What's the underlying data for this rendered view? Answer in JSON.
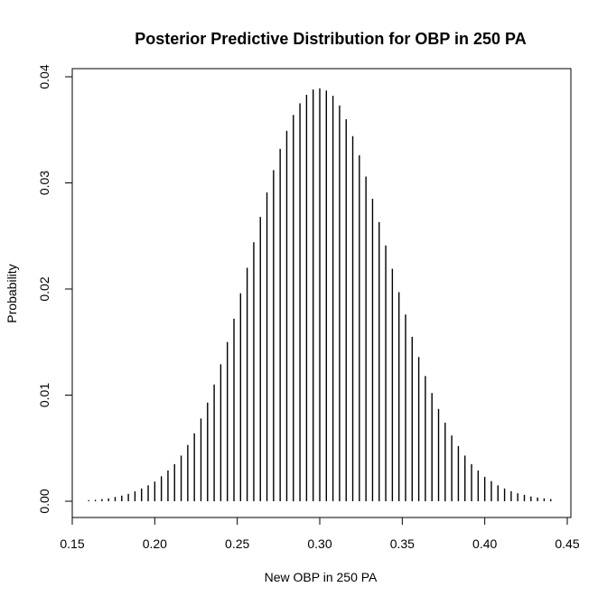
{
  "chart_data": {
    "type": "bar",
    "title": "Posterior Predictive Distribution for OBP in 250 PA",
    "xlabel": "New OBP in 250 PA",
    "ylabel": "Probability",
    "xlim": [
      0.15,
      0.45
    ],
    "ylim": [
      0,
      0.04
    ],
    "xticks": [
      "0.15",
      "0.20",
      "0.25",
      "0.30",
      "0.35",
      "0.40",
      "0.45"
    ],
    "yticks": [
      "0.00",
      "0.01",
      "0.02",
      "0.03",
      "0.04"
    ],
    "grid": false,
    "x": [
      0.16,
      0.164,
      0.168,
      0.172,
      0.176,
      0.18,
      0.184,
      0.188,
      0.192,
      0.196,
      0.2,
      0.204,
      0.208,
      0.212,
      0.216,
      0.22,
      0.224,
      0.228,
      0.232,
      0.236,
      0.24,
      0.244,
      0.248,
      0.252,
      0.256,
      0.26,
      0.264,
      0.268,
      0.272,
      0.276,
      0.28,
      0.284,
      0.288,
      0.292,
      0.296,
      0.3,
      0.304,
      0.308,
      0.312,
      0.316,
      0.32,
      0.324,
      0.328,
      0.332,
      0.336,
      0.34,
      0.344,
      0.348,
      0.352,
      0.356,
      0.36,
      0.364,
      0.368,
      0.372,
      0.376,
      0.38,
      0.384,
      0.388,
      0.392,
      0.396,
      0.4,
      0.404,
      0.408,
      0.412,
      0.416,
      0.42,
      0.424,
      0.428,
      0.432,
      0.436,
      0.44
    ],
    "values": [
      0.0001,
      0.00013,
      0.0002,
      0.00027,
      0.0004,
      0.00053,
      0.0007,
      0.00093,
      0.0012,
      0.0015,
      0.00185,
      0.00235,
      0.0029,
      0.0035,
      0.0043,
      0.0053,
      0.0064,
      0.0078,
      0.0093,
      0.011,
      0.0129,
      0.015,
      0.0172,
      0.0196,
      0.022,
      0.0244,
      0.0268,
      0.0291,
      0.0312,
      0.0332,
      0.0349,
      0.0364,
      0.0375,
      0.0383,
      0.0388,
      0.0389,
      0.0387,
      0.0382,
      0.0373,
      0.036,
      0.0344,
      0.0326,
      0.0306,
      0.0285,
      0.0263,
      0.0241,
      0.0219,
      0.0197,
      0.0176,
      0.0155,
      0.0136,
      0.0118,
      0.0102,
      0.0087,
      0.0074,
      0.0062,
      0.0052,
      0.0043,
      0.0035,
      0.0029,
      0.0023,
      0.0019,
      0.0015,
      0.0012,
      0.00095,
      0.00075,
      0.0006,
      0.00045,
      0.00035,
      0.00027,
      0.0002
    ]
  }
}
